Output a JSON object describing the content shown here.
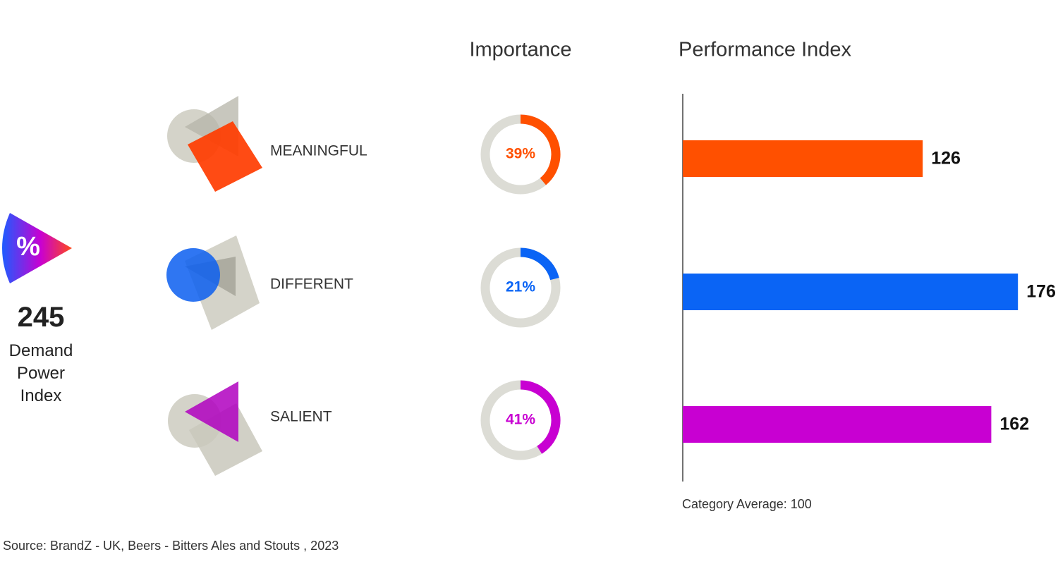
{
  "kpi": {
    "icon": "%",
    "value": 245,
    "label": "Demand Power Index"
  },
  "chart_data": {
    "type": "bar",
    "categories": [
      "MEANINGFUL",
      "DIFFERENT",
      "SALIENT"
    ],
    "colors": [
      "#ff5000",
      "#0a64f5",
      "#c800d2"
    ],
    "series": [
      {
        "name": "Importance",
        "type": "donut",
        "values": [
          39,
          21,
          41
        ],
        "value_labels": [
          "39%",
          "21%",
          "41%"
        ]
      },
      {
        "name": "Performance Index",
        "values": [
          126,
          176,
          162
        ]
      }
    ],
    "xlim": [
      0,
      180
    ],
    "note": "Category Average: 100"
  },
  "source": "Source: BrandZ - UK, Beers - Bitters Ales and Stouts , 2023"
}
